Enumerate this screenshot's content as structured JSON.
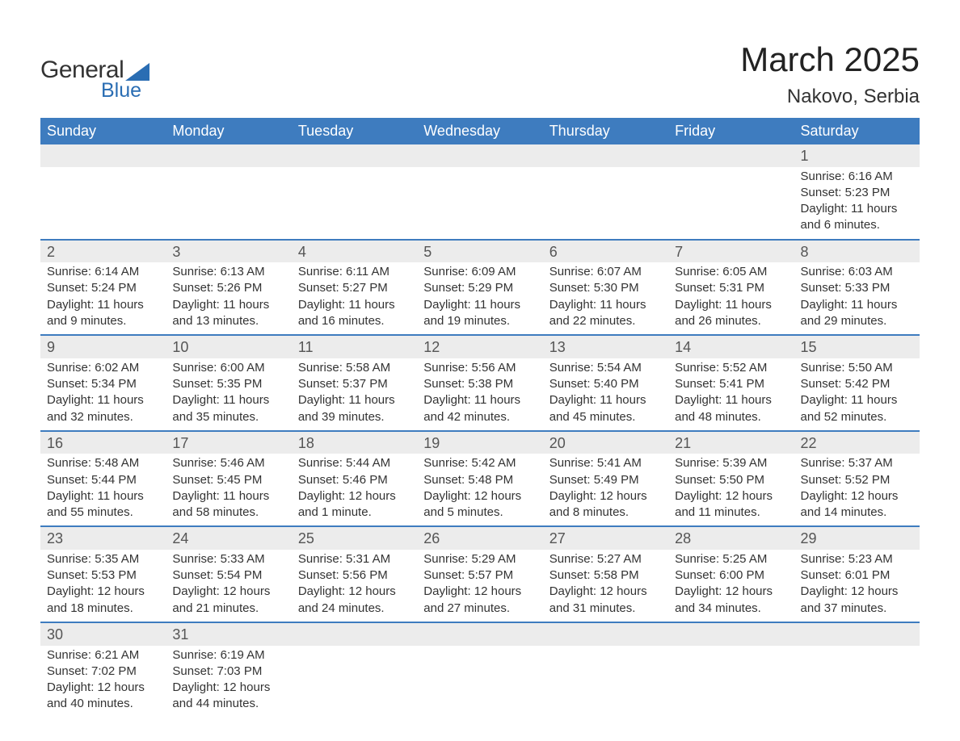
{
  "logo": {
    "general": "General",
    "blue": "Blue"
  },
  "title": "March 2025",
  "location": "Nakovo, Serbia",
  "colors": {
    "header_bg": "#3e7cbf",
    "header_text": "#ffffff",
    "daynum_bg": "#ececec",
    "row_divider": "#3e7cbf",
    "logo_blue": "#2a6db3",
    "text": "#333333",
    "bg": "#ffffff"
  },
  "day_headers": [
    "Sunday",
    "Monday",
    "Tuesday",
    "Wednesday",
    "Thursday",
    "Friday",
    "Saturday"
  ],
  "weeks": [
    [
      {
        "n": "",
        "l1": "",
        "l2": "",
        "l3": "",
        "l4": ""
      },
      {
        "n": "",
        "l1": "",
        "l2": "",
        "l3": "",
        "l4": ""
      },
      {
        "n": "",
        "l1": "",
        "l2": "",
        "l3": "",
        "l4": ""
      },
      {
        "n": "",
        "l1": "",
        "l2": "",
        "l3": "",
        "l4": ""
      },
      {
        "n": "",
        "l1": "",
        "l2": "",
        "l3": "",
        "l4": ""
      },
      {
        "n": "",
        "l1": "",
        "l2": "",
        "l3": "",
        "l4": ""
      },
      {
        "n": "1",
        "l1": "Sunrise: 6:16 AM",
        "l2": "Sunset: 5:23 PM",
        "l3": "Daylight: 11 hours",
        "l4": "and 6 minutes."
      }
    ],
    [
      {
        "n": "2",
        "l1": "Sunrise: 6:14 AM",
        "l2": "Sunset: 5:24 PM",
        "l3": "Daylight: 11 hours",
        "l4": "and 9 minutes."
      },
      {
        "n": "3",
        "l1": "Sunrise: 6:13 AM",
        "l2": "Sunset: 5:26 PM",
        "l3": "Daylight: 11 hours",
        "l4": "and 13 minutes."
      },
      {
        "n": "4",
        "l1": "Sunrise: 6:11 AM",
        "l2": "Sunset: 5:27 PM",
        "l3": "Daylight: 11 hours",
        "l4": "and 16 minutes."
      },
      {
        "n": "5",
        "l1": "Sunrise: 6:09 AM",
        "l2": "Sunset: 5:29 PM",
        "l3": "Daylight: 11 hours",
        "l4": "and 19 minutes."
      },
      {
        "n": "6",
        "l1": "Sunrise: 6:07 AM",
        "l2": "Sunset: 5:30 PM",
        "l3": "Daylight: 11 hours",
        "l4": "and 22 minutes."
      },
      {
        "n": "7",
        "l1": "Sunrise: 6:05 AM",
        "l2": "Sunset: 5:31 PM",
        "l3": "Daylight: 11 hours",
        "l4": "and 26 minutes."
      },
      {
        "n": "8",
        "l1": "Sunrise: 6:03 AM",
        "l2": "Sunset: 5:33 PM",
        "l3": "Daylight: 11 hours",
        "l4": "and 29 minutes."
      }
    ],
    [
      {
        "n": "9",
        "l1": "Sunrise: 6:02 AM",
        "l2": "Sunset: 5:34 PM",
        "l3": "Daylight: 11 hours",
        "l4": "and 32 minutes."
      },
      {
        "n": "10",
        "l1": "Sunrise: 6:00 AM",
        "l2": "Sunset: 5:35 PM",
        "l3": "Daylight: 11 hours",
        "l4": "and 35 minutes."
      },
      {
        "n": "11",
        "l1": "Sunrise: 5:58 AM",
        "l2": "Sunset: 5:37 PM",
        "l3": "Daylight: 11 hours",
        "l4": "and 39 minutes."
      },
      {
        "n": "12",
        "l1": "Sunrise: 5:56 AM",
        "l2": "Sunset: 5:38 PM",
        "l3": "Daylight: 11 hours",
        "l4": "and 42 minutes."
      },
      {
        "n": "13",
        "l1": "Sunrise: 5:54 AM",
        "l2": "Sunset: 5:40 PM",
        "l3": "Daylight: 11 hours",
        "l4": "and 45 minutes."
      },
      {
        "n": "14",
        "l1": "Sunrise: 5:52 AM",
        "l2": "Sunset: 5:41 PM",
        "l3": "Daylight: 11 hours",
        "l4": "and 48 minutes."
      },
      {
        "n": "15",
        "l1": "Sunrise: 5:50 AM",
        "l2": "Sunset: 5:42 PM",
        "l3": "Daylight: 11 hours",
        "l4": "and 52 minutes."
      }
    ],
    [
      {
        "n": "16",
        "l1": "Sunrise: 5:48 AM",
        "l2": "Sunset: 5:44 PM",
        "l3": "Daylight: 11 hours",
        "l4": "and 55 minutes."
      },
      {
        "n": "17",
        "l1": "Sunrise: 5:46 AM",
        "l2": "Sunset: 5:45 PM",
        "l3": "Daylight: 11 hours",
        "l4": "and 58 minutes."
      },
      {
        "n": "18",
        "l1": "Sunrise: 5:44 AM",
        "l2": "Sunset: 5:46 PM",
        "l3": "Daylight: 12 hours",
        "l4": "and 1 minute."
      },
      {
        "n": "19",
        "l1": "Sunrise: 5:42 AM",
        "l2": "Sunset: 5:48 PM",
        "l3": "Daylight: 12 hours",
        "l4": "and 5 minutes."
      },
      {
        "n": "20",
        "l1": "Sunrise: 5:41 AM",
        "l2": "Sunset: 5:49 PM",
        "l3": "Daylight: 12 hours",
        "l4": "and 8 minutes."
      },
      {
        "n": "21",
        "l1": "Sunrise: 5:39 AM",
        "l2": "Sunset: 5:50 PM",
        "l3": "Daylight: 12 hours",
        "l4": "and 11 minutes."
      },
      {
        "n": "22",
        "l1": "Sunrise: 5:37 AM",
        "l2": "Sunset: 5:52 PM",
        "l3": "Daylight: 12 hours",
        "l4": "and 14 minutes."
      }
    ],
    [
      {
        "n": "23",
        "l1": "Sunrise: 5:35 AM",
        "l2": "Sunset: 5:53 PM",
        "l3": "Daylight: 12 hours",
        "l4": "and 18 minutes."
      },
      {
        "n": "24",
        "l1": "Sunrise: 5:33 AM",
        "l2": "Sunset: 5:54 PM",
        "l3": "Daylight: 12 hours",
        "l4": "and 21 minutes."
      },
      {
        "n": "25",
        "l1": "Sunrise: 5:31 AM",
        "l2": "Sunset: 5:56 PM",
        "l3": "Daylight: 12 hours",
        "l4": "and 24 minutes."
      },
      {
        "n": "26",
        "l1": "Sunrise: 5:29 AM",
        "l2": "Sunset: 5:57 PM",
        "l3": "Daylight: 12 hours",
        "l4": "and 27 minutes."
      },
      {
        "n": "27",
        "l1": "Sunrise: 5:27 AM",
        "l2": "Sunset: 5:58 PM",
        "l3": "Daylight: 12 hours",
        "l4": "and 31 minutes."
      },
      {
        "n": "28",
        "l1": "Sunrise: 5:25 AM",
        "l2": "Sunset: 6:00 PM",
        "l3": "Daylight: 12 hours",
        "l4": "and 34 minutes."
      },
      {
        "n": "29",
        "l1": "Sunrise: 5:23 AM",
        "l2": "Sunset: 6:01 PM",
        "l3": "Daylight: 12 hours",
        "l4": "and 37 minutes."
      }
    ],
    [
      {
        "n": "30",
        "l1": "Sunrise: 6:21 AM",
        "l2": "Sunset: 7:02 PM",
        "l3": "Daylight: 12 hours",
        "l4": "and 40 minutes."
      },
      {
        "n": "31",
        "l1": "Sunrise: 6:19 AM",
        "l2": "Sunset: 7:03 PM",
        "l3": "Daylight: 12 hours",
        "l4": "and 44 minutes."
      },
      {
        "n": "",
        "l1": "",
        "l2": "",
        "l3": "",
        "l4": ""
      },
      {
        "n": "",
        "l1": "",
        "l2": "",
        "l3": "",
        "l4": ""
      },
      {
        "n": "",
        "l1": "",
        "l2": "",
        "l3": "",
        "l4": ""
      },
      {
        "n": "",
        "l1": "",
        "l2": "",
        "l3": "",
        "l4": ""
      },
      {
        "n": "",
        "l1": "",
        "l2": "",
        "l3": "",
        "l4": ""
      }
    ]
  ]
}
